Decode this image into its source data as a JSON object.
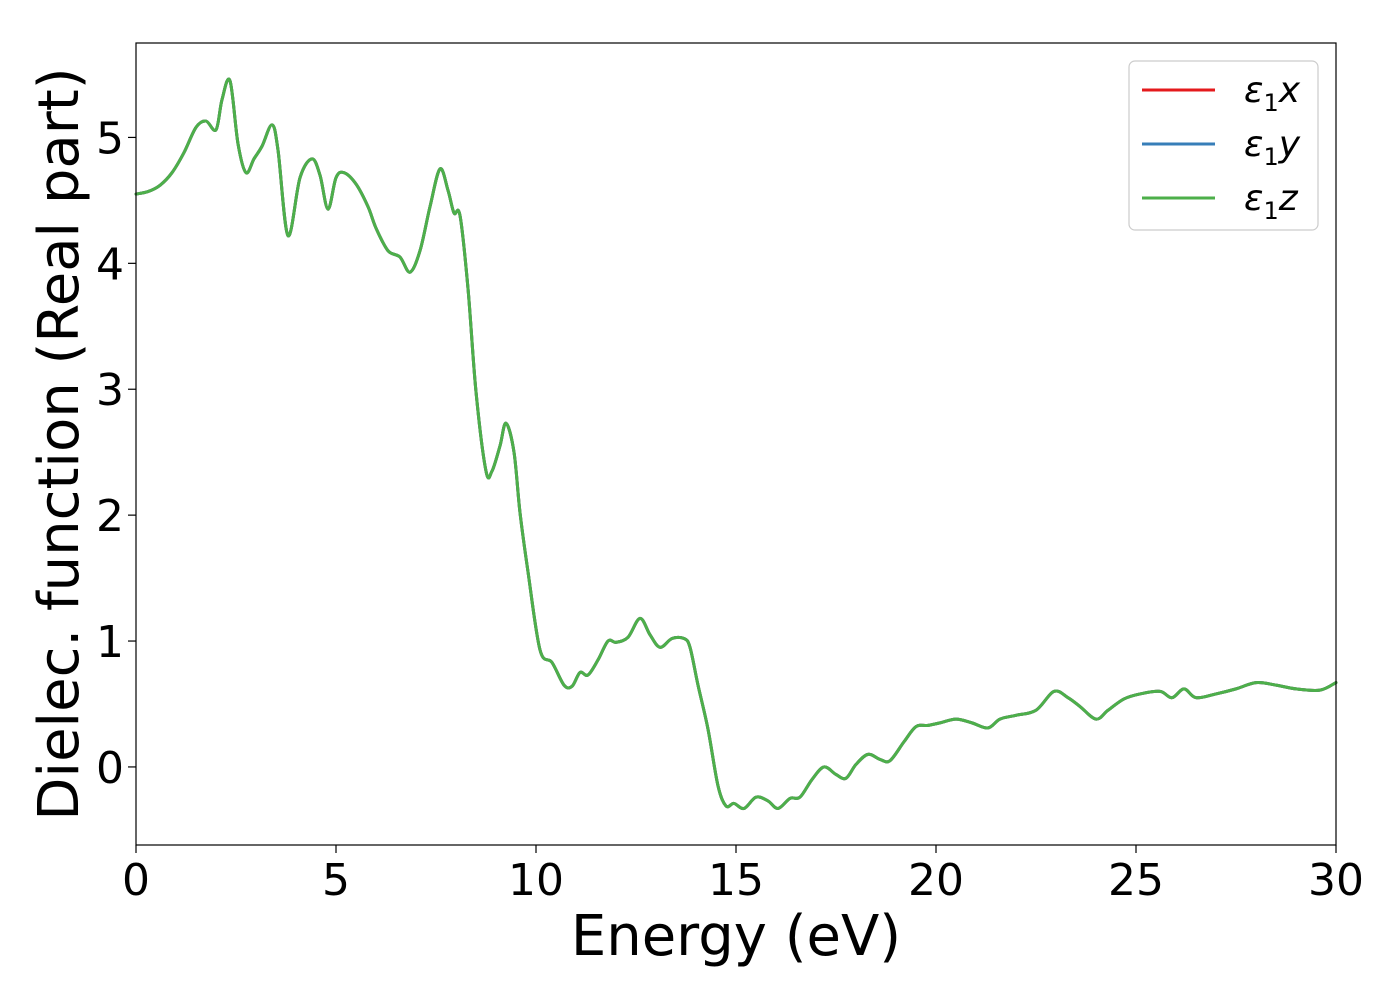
{
  "chart_data": {
    "type": "line",
    "xlabel": "Energy (eV)",
    "ylabel": "Dielec. function (Real part)",
    "xlim": [
      0,
      30
    ],
    "ylim": [
      -0.62,
      5.75
    ],
    "xticks": [
      0,
      5,
      10,
      15,
      20,
      25,
      30
    ],
    "yticks": [
      0,
      1,
      2,
      3,
      4,
      5
    ],
    "grid": false,
    "legend_position": "top-right",
    "series": [
      {
        "name": "ε₁x",
        "legend": {
          "base": "ε",
          "sub": "1",
          "suffix": "x"
        },
        "color": "#e41a1c",
        "x": [
          0,
          0.3,
          0.6,
          0.9,
          1.2,
          1.5,
          1.75,
          2.0,
          2.15,
          2.35,
          2.55,
          2.75,
          2.95,
          3.15,
          3.4,
          3.55,
          3.8,
          4.1,
          4.4,
          4.6,
          4.8,
          5.0,
          5.2,
          5.5,
          5.8,
          6.0,
          6.3,
          6.6,
          6.85,
          7.1,
          7.35,
          7.6,
          7.8,
          7.95,
          8.1,
          8.3,
          8.5,
          8.75,
          8.9,
          9.1,
          9.25,
          9.45,
          9.6,
          9.8,
          10.1,
          10.4,
          10.7,
          10.9,
          11.1,
          11.3,
          11.55,
          11.8,
          12.0,
          12.3,
          12.6,
          12.85,
          13.1,
          13.4,
          13.7,
          13.85,
          14.05,
          14.3,
          14.55,
          14.75,
          14.95,
          15.2,
          15.5,
          15.8,
          16.05,
          16.35,
          16.6,
          16.9,
          17.2,
          17.5,
          17.75,
          18.0,
          18.3,
          18.6,
          18.85,
          19.2,
          19.5,
          19.8,
          20.1,
          20.5,
          20.9,
          21.3,
          21.6,
          22.0,
          22.5,
          22.95,
          23.3,
          23.6,
          24.0,
          24.3,
          24.7,
          25.1,
          25.6,
          25.9,
          26.2,
          26.5,
          27.0,
          27.5,
          28.0,
          28.5,
          29.0,
          29.6,
          30.0
        ],
        "y": [
          4.55,
          4.57,
          4.62,
          4.72,
          4.88,
          5.08,
          5.13,
          5.06,
          5.3,
          5.45,
          4.95,
          4.72,
          4.83,
          4.93,
          5.1,
          4.9,
          4.22,
          4.68,
          4.83,
          4.7,
          4.43,
          4.68,
          4.72,
          4.63,
          4.45,
          4.28,
          4.1,
          4.05,
          3.93,
          4.1,
          4.45,
          4.75,
          4.58,
          4.4,
          4.38,
          3.8,
          2.98,
          2.35,
          2.35,
          2.55,
          2.73,
          2.5,
          2.02,
          1.55,
          0.93,
          0.83,
          0.65,
          0.64,
          0.75,
          0.73,
          0.85,
          1.0,
          0.99,
          1.03,
          1.18,
          1.05,
          0.95,
          1.02,
          1.02,
          0.95,
          0.65,
          0.3,
          -0.15,
          -0.31,
          -0.29,
          -0.33,
          -0.24,
          -0.27,
          -0.33,
          -0.25,
          -0.24,
          -0.1,
          0.0,
          -0.06,
          -0.09,
          0.02,
          0.1,
          0.06,
          0.05,
          0.2,
          0.32,
          0.33,
          0.35,
          0.38,
          0.35,
          0.31,
          0.38,
          0.41,
          0.45,
          0.6,
          0.55,
          0.48,
          0.38,
          0.45,
          0.54,
          0.58,
          0.6,
          0.55,
          0.62,
          0.55,
          0.58,
          0.62,
          0.67,
          0.65,
          0.62,
          0.61,
          0.67
        ]
      },
      {
        "name": "ε₁y",
        "legend": {
          "base": "ε",
          "sub": "1",
          "suffix": "y"
        },
        "color": "#377eb8",
        "x": [
          0,
          0.3,
          0.6,
          0.9,
          1.2,
          1.5,
          1.75,
          2.0,
          2.15,
          2.35,
          2.55,
          2.75,
          2.95,
          3.15,
          3.4,
          3.55,
          3.8,
          4.1,
          4.4,
          4.6,
          4.8,
          5.0,
          5.2,
          5.5,
          5.8,
          6.0,
          6.3,
          6.6,
          6.85,
          7.1,
          7.35,
          7.6,
          7.8,
          7.95,
          8.1,
          8.3,
          8.5,
          8.75,
          8.9,
          9.1,
          9.25,
          9.45,
          9.6,
          9.8,
          10.1,
          10.4,
          10.7,
          10.9,
          11.1,
          11.3,
          11.55,
          11.8,
          12.0,
          12.3,
          12.6,
          12.85,
          13.1,
          13.4,
          13.7,
          13.85,
          14.05,
          14.3,
          14.55,
          14.75,
          14.95,
          15.2,
          15.5,
          15.8,
          16.05,
          16.35,
          16.6,
          16.9,
          17.2,
          17.5,
          17.75,
          18.0,
          18.3,
          18.6,
          18.85,
          19.2,
          19.5,
          19.8,
          20.1,
          20.5,
          20.9,
          21.3,
          21.6,
          22.0,
          22.5,
          22.95,
          23.3,
          23.6,
          24.0,
          24.3,
          24.7,
          25.1,
          25.6,
          25.9,
          26.2,
          26.5,
          27.0,
          27.5,
          28.0,
          28.5,
          29.0,
          29.6,
          30.0
        ],
        "y": [
          4.55,
          4.57,
          4.62,
          4.72,
          4.88,
          5.08,
          5.13,
          5.06,
          5.3,
          5.45,
          4.95,
          4.72,
          4.83,
          4.93,
          5.1,
          4.9,
          4.22,
          4.68,
          4.83,
          4.7,
          4.43,
          4.68,
          4.72,
          4.63,
          4.45,
          4.28,
          4.1,
          4.05,
          3.93,
          4.1,
          4.45,
          4.75,
          4.58,
          4.4,
          4.38,
          3.8,
          2.98,
          2.35,
          2.35,
          2.55,
          2.73,
          2.5,
          2.02,
          1.55,
          0.93,
          0.83,
          0.65,
          0.64,
          0.75,
          0.73,
          0.85,
          1.0,
          0.99,
          1.03,
          1.18,
          1.05,
          0.95,
          1.02,
          1.02,
          0.95,
          0.65,
          0.3,
          -0.15,
          -0.31,
          -0.29,
          -0.33,
          -0.24,
          -0.27,
          -0.33,
          -0.25,
          -0.24,
          -0.1,
          0.0,
          -0.06,
          -0.09,
          0.02,
          0.1,
          0.06,
          0.05,
          0.2,
          0.32,
          0.33,
          0.35,
          0.38,
          0.35,
          0.31,
          0.38,
          0.41,
          0.45,
          0.6,
          0.55,
          0.48,
          0.38,
          0.45,
          0.54,
          0.58,
          0.6,
          0.55,
          0.62,
          0.55,
          0.58,
          0.62,
          0.67,
          0.65,
          0.62,
          0.61,
          0.67
        ]
      },
      {
        "name": "ε₁z",
        "legend": {
          "base": "ε",
          "sub": "1",
          "suffix": "z"
        },
        "color": "#4daf4a",
        "x": [
          0,
          0.3,
          0.6,
          0.9,
          1.2,
          1.5,
          1.75,
          2.0,
          2.15,
          2.35,
          2.55,
          2.75,
          2.95,
          3.15,
          3.4,
          3.55,
          3.8,
          4.1,
          4.4,
          4.6,
          4.8,
          5.0,
          5.2,
          5.5,
          5.8,
          6.0,
          6.3,
          6.6,
          6.85,
          7.1,
          7.35,
          7.6,
          7.8,
          7.95,
          8.1,
          8.3,
          8.5,
          8.75,
          8.9,
          9.1,
          9.25,
          9.45,
          9.6,
          9.8,
          10.1,
          10.4,
          10.7,
          10.9,
          11.1,
          11.3,
          11.55,
          11.8,
          12.0,
          12.3,
          12.6,
          12.85,
          13.1,
          13.4,
          13.7,
          13.85,
          14.05,
          14.3,
          14.55,
          14.75,
          14.95,
          15.2,
          15.5,
          15.8,
          16.05,
          16.35,
          16.6,
          16.9,
          17.2,
          17.5,
          17.75,
          18.0,
          18.3,
          18.6,
          18.85,
          19.2,
          19.5,
          19.8,
          20.1,
          20.5,
          20.9,
          21.3,
          21.6,
          22.0,
          22.5,
          22.95,
          23.3,
          23.6,
          24.0,
          24.3,
          24.7,
          25.1,
          25.6,
          25.9,
          26.2,
          26.5,
          27.0,
          27.5,
          28.0,
          28.5,
          29.0,
          29.6,
          30.0
        ],
        "y": [
          4.55,
          4.57,
          4.62,
          4.72,
          4.88,
          5.08,
          5.13,
          5.06,
          5.3,
          5.45,
          4.95,
          4.72,
          4.83,
          4.93,
          5.1,
          4.9,
          4.22,
          4.68,
          4.83,
          4.7,
          4.43,
          4.68,
          4.72,
          4.63,
          4.45,
          4.28,
          4.1,
          4.05,
          3.93,
          4.1,
          4.45,
          4.75,
          4.58,
          4.4,
          4.38,
          3.8,
          2.98,
          2.35,
          2.35,
          2.55,
          2.73,
          2.5,
          2.02,
          1.55,
          0.93,
          0.83,
          0.65,
          0.64,
          0.75,
          0.73,
          0.85,
          1.0,
          0.99,
          1.03,
          1.18,
          1.05,
          0.95,
          1.02,
          1.02,
          0.95,
          0.65,
          0.3,
          -0.15,
          -0.31,
          -0.29,
          -0.33,
          -0.24,
          -0.27,
          -0.33,
          -0.25,
          -0.24,
          -0.1,
          0.0,
          -0.06,
          -0.09,
          0.02,
          0.1,
          0.06,
          0.05,
          0.2,
          0.32,
          0.33,
          0.35,
          0.38,
          0.35,
          0.31,
          0.38,
          0.41,
          0.45,
          0.6,
          0.55,
          0.48,
          0.38,
          0.45,
          0.54,
          0.58,
          0.6,
          0.55,
          0.62,
          0.55,
          0.58,
          0.62,
          0.67,
          0.65,
          0.62,
          0.61,
          0.67
        ]
      }
    ]
  }
}
